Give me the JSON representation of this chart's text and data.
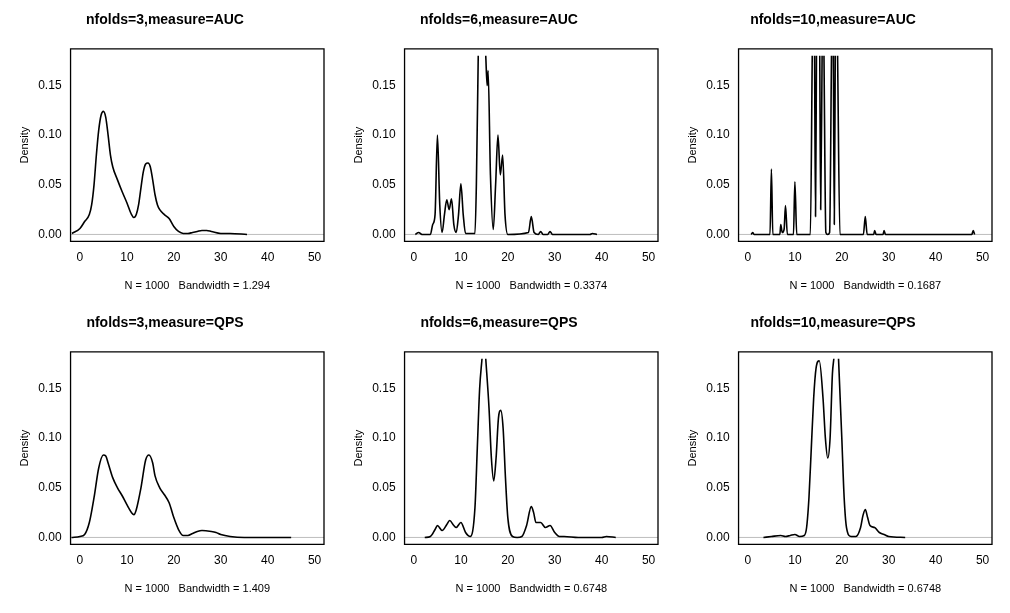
{
  "chart_data": [
    {
      "type": "line",
      "title": "nfolds=3,measure=AUC",
      "xlabel": "N = 1000   Bandwidth = 1.294",
      "ylabel": "Density",
      "xlim": [
        -2,
        52
      ],
      "ylim": [
        -0.007,
        0.187
      ],
      "xticks": [
        0,
        10,
        20,
        30,
        40,
        50
      ],
      "yticks": [
        {
          "value": 0,
          "label": "0.00"
        },
        {
          "value": 0.05,
          "label": "0.05"
        },
        {
          "value": 0.1,
          "label": "0.10"
        },
        {
          "value": 0.15,
          "label": "0.15"
        }
      ],
      "ref_lines": [
        {
          "axis": "y",
          "value": 0,
          "color": "#bebebe"
        }
      ],
      "series": [
        {
          "color": "#000000",
          "x": [
            -1.7,
            0,
            1,
            2,
            2.5,
            3,
            3.5,
            4,
            4.5,
            5,
            5.5,
            6,
            6.5,
            7,
            8,
            9,
            10,
            11,
            11.5,
            12,
            12.5,
            13,
            13.5,
            14,
            14.5,
            15,
            15.5,
            16,
            16.5,
            17,
            18,
            19,
            20,
            21,
            22,
            23,
            24,
            25,
            26,
            27,
            28,
            30,
            32,
            35.6
          ],
          "values": [
            0.001,
            0.006,
            0.013,
            0.02,
            0.03,
            0.05,
            0.08,
            0.105,
            0.12,
            0.124,
            0.118,
            0.1,
            0.08,
            0.068,
            0.055,
            0.043,
            0.032,
            0.02,
            0.017,
            0.02,
            0.03,
            0.047,
            0.063,
            0.071,
            0.072,
            0.068,
            0.055,
            0.04,
            0.03,
            0.025,
            0.02,
            0.016,
            0.008,
            0.003,
            0.001,
            0.001,
            0.002,
            0.003,
            0.004,
            0.004,
            0.003,
            0.001,
            0.001,
            0
          ]
        }
      ]
    },
    {
      "type": "line",
      "title": "nfolds=6,measure=AUC",
      "xlabel": "N = 1000   Bandwidth = 0.3374",
      "ylabel": "Density",
      "xlim": [
        -2,
        52
      ],
      "ylim": [
        -0.007,
        0.187
      ],
      "xticks": [
        0,
        10,
        20,
        30,
        40,
        50
      ],
      "yticks": [
        {
          "value": 0,
          "label": "0.00"
        },
        {
          "value": 0.05,
          "label": "0.05"
        },
        {
          "value": 0.1,
          "label": "0.10"
        },
        {
          "value": 0.15,
          "label": "0.15"
        }
      ],
      "ref_lines": [
        {
          "axis": "y",
          "value": 0,
          "color": "#bebebe"
        }
      ],
      "series": [
        {
          "color": "#000000",
          "x": [
            0.3,
            1,
            1.7,
            3.5,
            4,
            4.5,
            5,
            5.5,
            6,
            6.5,
            7,
            7.5,
            8,
            8.5,
            9,
            9.5,
            10,
            10.5,
            11,
            13,
            13.3,
            13.7,
            13.9,
            14.1,
            14.2,
            14.3,
            14.5,
            15.3,
            15.6,
            15.8,
            16.3,
            16.9,
            17.4,
            17.9,
            18.4,
            18.9,
            19.4,
            20,
            24.4,
            25,
            25.6,
            26.5,
            27,
            27.5,
            28.5,
            29,
            29.5,
            30,
            37.5,
            38,
            39
          ],
          "values": [
            0,
            0.002,
            0,
            0,
            0.01,
            0.02,
            0.1,
            0.03,
            0.002,
            0.02,
            0.035,
            0.025,
            0.036,
            0.01,
            0.002,
            0.02,
            0.051,
            0.02,
            0.001,
            0.001,
            0.05,
            0.18,
            null,
            null,
            null,
            null,
            null,
            0.18,
            0.15,
            0.165,
            0.06,
            0.005,
            0.05,
            0.1,
            0.06,
            0.08,
            0.02,
            0,
            0.002,
            0.018,
            0.002,
            0,
            0.003,
            0,
            0,
            0.003,
            0,
            0,
            0,
            0.001,
            0
          ]
        }
      ]
    },
    {
      "type": "line",
      "title": "nfolds=10,measure=AUC",
      "xlabel": "N = 1000   Bandwidth = 0.1687",
      "ylabel": "Density",
      "xlim": [
        -2,
        52
      ],
      "ylim": [
        -0.007,
        0.187
      ],
      "xticks": [
        0,
        10,
        20,
        30,
        40,
        50
      ],
      "yticks": [
        {
          "value": 0,
          "label": "0.00"
        },
        {
          "value": 0.05,
          "label": "0.05"
        },
        {
          "value": 0.1,
          "label": "0.10"
        },
        {
          "value": 0.15,
          "label": "0.15"
        }
      ],
      "ref_lines": [
        {
          "axis": "y",
          "value": 0,
          "color": "#bebebe"
        }
      ],
      "series": [
        {
          "color": "#000000",
          "x": [
            0.7,
            1,
            1.3,
            4.7,
            5,
            5.3,
            6.8,
            7,
            7.3,
            7.7,
            8,
            8.4,
            9.7,
            10,
            10.4,
            13.3,
            13.7,
            13.9,
            14.2,
            14.4,
            14.6,
            15,
            15.3,
            15.5,
            15.8,
            16,
            16.2,
            16.6,
            17,
            17.4,
            17.8,
            18,
            18.2,
            18.4,
            18.6,
            18.9,
            19.1,
            19.6,
            24.6,
            25,
            25.4,
            26.8,
            27,
            27.3,
            28.8,
            29,
            29.3,
            47.7,
            48,
            48.3
          ],
          "values": [
            0,
            0.002,
            0,
            0,
            0.066,
            0,
            0,
            0.01,
            0.002,
            0.005,
            0.029,
            0,
            0,
            0.053,
            0,
            0,
            0.18,
            null,
            0.18,
            0.018,
            0.18,
            null,
            0.18,
            0.025,
            0.18,
            null,
            0.18,
            0.002,
            0,
            0.002,
            0.18,
            null,
            0.18,
            0.01,
            0.18,
            null,
            0.18,
            0,
            0,
            0.018,
            0,
            0,
            0.004,
            0,
            0,
            0.004,
            0,
            0,
            0.004,
            0
          ]
        }
      ]
    },
    {
      "type": "line",
      "title": "nfolds=3,measure=QPS",
      "xlabel": "N = 1000   Bandwidth = 1.409",
      "ylabel": "Density",
      "xlim": [
        -2,
        52
      ],
      "ylim": [
        -0.007,
        0.187
      ],
      "xticks": [
        0,
        10,
        20,
        30,
        40,
        50
      ],
      "yticks": [
        {
          "value": 0,
          "label": "0.00"
        },
        {
          "value": 0.05,
          "label": "0.05"
        },
        {
          "value": 0.1,
          "label": "0.10"
        },
        {
          "value": 0.15,
          "label": "0.15"
        }
      ],
      "ref_lines": [
        {
          "axis": "y",
          "value": 0,
          "color": "#bebebe"
        }
      ],
      "series": [
        {
          "color": "#000000",
          "x": [
            -1.8,
            0,
            1,
            2,
            3,
            4,
            5,
            5.5,
            6,
            7,
            8,
            9,
            10,
            11,
            11.5,
            12,
            13,
            14,
            14.7,
            15.5,
            16,
            17,
            18,
            19,
            20,
            21,
            22,
            23,
            24,
            25,
            26,
            28,
            29,
            30,
            32,
            35,
            40,
            45
          ],
          "values": [
            0,
            0.001,
            0.003,
            0.015,
            0.04,
            0.07,
            0.083,
            0.082,
            0.075,
            0.06,
            0.05,
            0.042,
            0.033,
            0.025,
            0.023,
            0.028,
            0.05,
            0.078,
            0.083,
            0.075,
            0.062,
            0.05,
            0.043,
            0.035,
            0.02,
            0.008,
            0.002,
            0.002,
            0.004,
            0.006,
            0.007,
            0.006,
            0.005,
            0.003,
            0.001,
            0,
            0,
            0
          ]
        }
      ]
    },
    {
      "type": "line",
      "title": "nfolds=6,measure=QPS",
      "xlabel": "N = 1000   Bandwidth = 0.6748",
      "ylabel": "Density",
      "xlim": [
        -2,
        52
      ],
      "ylim": [
        -0.007,
        0.187
      ],
      "xticks": [
        0,
        10,
        20,
        30,
        40,
        50
      ],
      "yticks": [
        {
          "value": 0,
          "label": "0.00"
        },
        {
          "value": 0.05,
          "label": "0.05"
        },
        {
          "value": 0.1,
          "label": "0.10"
        },
        {
          "value": 0.15,
          "label": "0.15"
        }
      ],
      "ref_lines": [
        {
          "axis": "y",
          "value": 0,
          "color": "#bebebe"
        }
      ],
      "series": [
        {
          "color": "#000000",
          "x": [
            2.3,
            3.5,
            4.5,
            5,
            6,
            7,
            7.6,
            8.5,
            9,
            10,
            11,
            12,
            13,
            13.5,
            14,
            14.5,
            14.9,
            15.3,
            16,
            16.5,
            17,
            17.5,
            18,
            18.5,
            19,
            19.5,
            20,
            21,
            22,
            23,
            24,
            25,
            25.5,
            26,
            27,
            28,
            29,
            30,
            31,
            32,
            35,
            40,
            41,
            43
          ],
          "values": [
            0,
            0.001,
            0.008,
            0.012,
            0.007,
            0.013,
            0.017,
            0.012,
            0.01,
            0.015,
            0.005,
            0.001,
            0.03,
            0.09,
            0.15,
            0.18,
            null,
            0.18,
            0.13,
            0.08,
            0.057,
            0.08,
            0.12,
            0.128,
            0.11,
            0.06,
            0.02,
            0.001,
            0,
            0.001,
            0.012,
            0.031,
            0.025,
            0.015,
            0.015,
            0.01,
            0.012,
            0.005,
            0.001,
            0.001,
            0,
            0,
            0.001,
            0
          ]
        }
      ]
    },
    {
      "type": "line",
      "title": "nfolds=10,measure=QPS",
      "xlabel": "N = 1000   Bandwidth = 0.6748",
      "ylabel": "Density",
      "xlim": [
        -2,
        52
      ],
      "ylim": [
        -0.007,
        0.187
      ],
      "xticks": [
        0,
        10,
        20,
        30,
        40,
        50
      ],
      "yticks": [
        {
          "value": 0,
          "label": "0.00"
        },
        {
          "value": 0.05,
          "label": "0.05"
        },
        {
          "value": 0.1,
          "label": "0.10"
        },
        {
          "value": 0.15,
          "label": "0.15"
        }
      ],
      "ref_lines": [
        {
          "axis": "y",
          "value": 0,
          "color": "#bebebe"
        }
      ],
      "series": [
        {
          "color": "#000000",
          "x": [
            3.3,
            5,
            7,
            8,
            9,
            10,
            11,
            12,
            12.5,
            13,
            13.5,
            14,
            14.5,
            15.2,
            16,
            16.5,
            17,
            17.5,
            18,
            18.3,
            18.8,
            19.3,
            20,
            20.5,
            21,
            22,
            23,
            24,
            24.5,
            25,
            25.5,
            26,
            27,
            28,
            29,
            30,
            33.5
          ],
          "values": [
            0,
            0.001,
            0.002,
            0.001,
            0.002,
            0.003,
            0.001,
            0.002,
            0.01,
            0.04,
            0.09,
            0.14,
            0.17,
            0.178,
            0.14,
            0.1,
            0.08,
            0.1,
            0.165,
            0.18,
            null,
            0.18,
            0.1,
            0.04,
            0.01,
            0.001,
            0.001,
            0.01,
            0.022,
            0.028,
            0.02,
            0.012,
            0.01,
            0.005,
            0.003,
            0.001,
            0
          ]
        }
      ]
    }
  ]
}
